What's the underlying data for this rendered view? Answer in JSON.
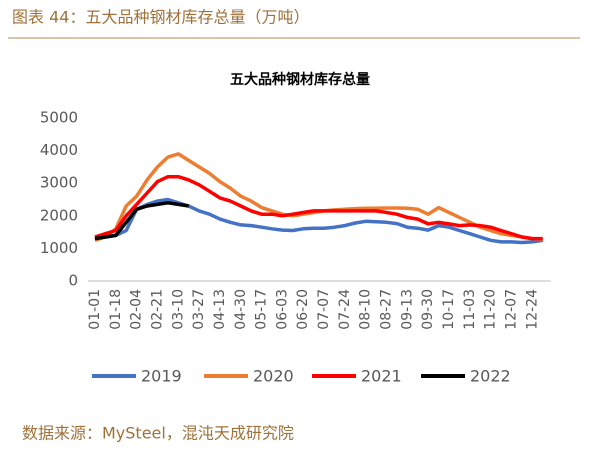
{
  "header": {
    "title": "图表 44：五大品种钢材库存总量（万吨）"
  },
  "chart_data": {
    "type": "line",
    "title": "五大品种钢材库存总量",
    "categories": [
      "01-01",
      null,
      "01-18",
      null,
      "02-04",
      null,
      "02-21",
      null,
      "03-10",
      null,
      "03-27",
      null,
      "04-13",
      null,
      "04-30",
      null,
      "05-17",
      null,
      "06-03",
      null,
      "06-20",
      null,
      "07-07",
      null,
      "07-24",
      null,
      "08-10",
      null,
      "08-27",
      null,
      "09-13",
      null,
      "09-30",
      null,
      "10-17",
      null,
      "11-03",
      null,
      "11-20",
      null,
      "12-07",
      null,
      "12-24",
      null
    ],
    "series": [
      {
        "name": "2019",
        "color": "#4472c4",
        "values": [
          1300,
          1350,
          1400,
          1550,
          2200,
          2350,
          2450,
          2500,
          2400,
          2300,
          2150,
          2050,
          1900,
          1800,
          1720,
          1700,
          1650,
          1600,
          1560,
          1550,
          1600,
          1620,
          1620,
          1650,
          1700,
          1780,
          1830,
          1820,
          1800,
          1760,
          1650,
          1620,
          1560,
          1700,
          1650,
          1550,
          1450,
          1350,
          1250,
          1200,
          1200,
          1180,
          1200,
          1250
        ]
      },
      {
        "name": "2020",
        "color": "#ed7d31",
        "values": [
          1250,
          1350,
          1600,
          2300,
          2600,
          3100,
          3500,
          3800,
          3900,
          3700,
          3500,
          3300,
          3050,
          2850,
          2600,
          2450,
          2250,
          2150,
          2050,
          2000,
          2050,
          2100,
          2150,
          2180,
          2200,
          2220,
          2230,
          2230,
          2240,
          2240,
          2230,
          2200,
          2050,
          2250,
          2100,
          1950,
          1800,
          1650,
          1550,
          1450,
          1400,
          1350,
          1300,
          1280
        ]
      },
      {
        "name": "2021",
        "color": "#ff0000",
        "values": [
          1350,
          1450,
          1550,
          2000,
          2350,
          2700,
          3050,
          3200,
          3200,
          3100,
          2950,
          2750,
          2550,
          2450,
          2300,
          2150,
          2050,
          2050,
          2000,
          2050,
          2100,
          2150,
          2150,
          2150,
          2150,
          2150,
          2150,
          2150,
          2100,
          2050,
          1950,
          1900,
          1750,
          1800,
          1750,
          1700,
          1720,
          1700,
          1650,
          1550,
          1450,
          1350,
          1300,
          1300
        ]
      },
      {
        "name": "2022",
        "color": "#000000",
        "values": [
          1300,
          1350,
          1400,
          1800,
          2200,
          2300,
          2350,
          2400,
          2350,
          2300,
          null,
          null,
          null,
          null,
          null,
          null,
          null,
          null,
          null,
          null,
          null,
          null,
          null,
          null,
          null,
          null,
          null,
          null,
          null,
          null,
          null,
          null,
          null,
          null,
          null,
          null,
          null,
          null,
          null,
          null,
          null,
          null,
          null,
          null
        ]
      }
    ],
    "ylim": [
      0,
      5000
    ],
    "yticks": [
      0,
      1000,
      2000,
      3000,
      4000,
      5000
    ],
    "grid": false,
    "legend": "bottom"
  },
  "footer": {
    "source": "数据来源：MySteel，混沌天成研究院"
  }
}
